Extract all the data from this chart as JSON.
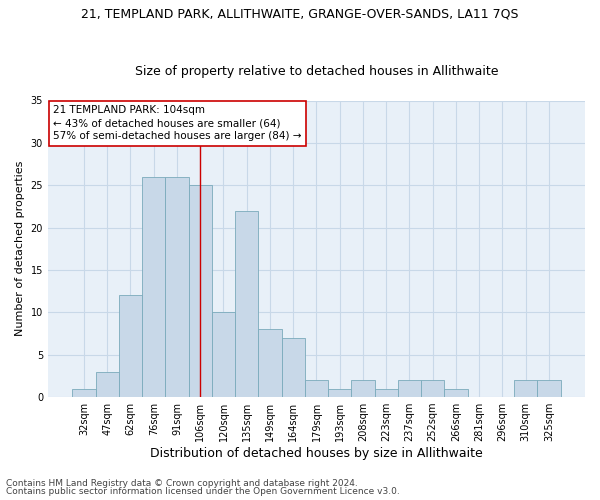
{
  "title": "21, TEMPLAND PARK, ALLITHWAITE, GRANGE-OVER-SANDS, LA11 7QS",
  "subtitle": "Size of property relative to detached houses in Allithwaite",
  "xlabel": "Distribution of detached houses by size in Allithwaite",
  "ylabel": "Number of detached properties",
  "categories": [
    "32sqm",
    "47sqm",
    "62sqm",
    "76sqm",
    "91sqm",
    "106sqm",
    "120sqm",
    "135sqm",
    "149sqm",
    "164sqm",
    "179sqm",
    "193sqm",
    "208sqm",
    "223sqm",
    "237sqm",
    "252sqm",
    "266sqm",
    "281sqm",
    "296sqm",
    "310sqm",
    "325sqm"
  ],
  "values": [
    1,
    3,
    12,
    26,
    26,
    25,
    10,
    22,
    8,
    7,
    2,
    1,
    2,
    1,
    2,
    2,
    1,
    0,
    0,
    2,
    2
  ],
  "bar_color": "#c8d8e8",
  "bar_edge_color": "#7aaabb",
  "vline_x_index": 5,
  "vline_color": "#cc0000",
  "annotation_line1": "21 TEMPLAND PARK: 104sqm",
  "annotation_line2": "← 43% of detached houses are smaller (64)",
  "annotation_line3": "57% of semi-detached houses are larger (84) →",
  "annotation_box_color": "#ffffff",
  "annotation_box_edge": "#cc0000",
  "ylim": [
    0,
    35
  ],
  "yticks": [
    0,
    5,
    10,
    15,
    20,
    25,
    30,
    35
  ],
  "footer1": "Contains HM Land Registry data © Crown copyright and database right 2024.",
  "footer2": "Contains public sector information licensed under the Open Government Licence v3.0.",
  "bg_color": "#ffffff",
  "plot_bg_color": "#e8f0f8",
  "grid_color": "#c8d8e8",
  "title_fontsize": 9,
  "subtitle_fontsize": 9,
  "xlabel_fontsize": 9,
  "ylabel_fontsize": 8,
  "tick_fontsize": 7,
  "annot_fontsize": 7.5,
  "footer_fontsize": 6.5
}
